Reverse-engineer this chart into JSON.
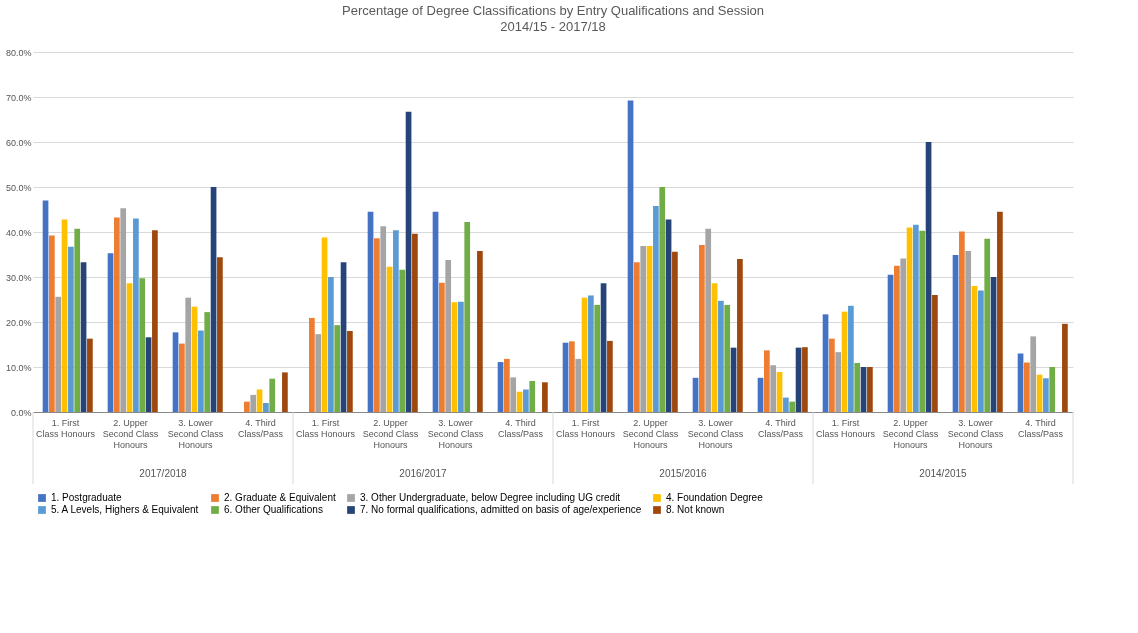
{
  "chart_data": {
    "type": "bar",
    "title": "Percentage of Degree Classifications by Entry Qualifications and Session",
    "subtitle": "2014/15 - 2017/18",
    "categories": [
      "1. First Class Honours",
      "2. Upper Second Class Honours",
      "3. Lower Second Class Honours",
      "4. Third Class/Pass",
      "1. First Class Honours",
      "2. Upper Second Class Honours",
      "3. Lower Second Class Honours",
      "4. Third Class/Pass",
      "1. First Class Honours",
      "2. Upper Second Class Honours",
      "3. Lower Second Class Honours",
      "4. Third Class/Pass",
      "1. First Class Honours",
      "2. Upper Second Class Honours",
      "3. Lower Second Class Honours",
      "4. Third Class/Pass"
    ],
    "annotations": [
      "2017/2018",
      "2016/2017",
      "2015/2016",
      "2014/2015"
    ],
    "series": [
      {
        "name": "1. Postgraduate",
        "color": "#4472c4",
        "values": [
          47,
          35.3,
          17.7,
          null,
          null,
          44.5,
          44.5,
          11.1,
          15.4,
          69.2,
          7.6,
          7.6,
          21.7,
          30.5,
          34.9,
          13.0
        ]
      },
      {
        "name": "2. Graduate & Equivalent",
        "color": "#ed7d31",
        "values": [
          39.2,
          43.2,
          15.2,
          2.3,
          20.9,
          38.6,
          28.7,
          11.8,
          15.7,
          33.3,
          37.1,
          13.7,
          16.3,
          32.5,
          40.1,
          11.0
        ]
      },
      {
        "name": "3. Other Undergraduate, below Degree including UG credit",
        "color": "#a5a5a5",
        "values": [
          25.6,
          45.3,
          25.4,
          3.8,
          17.3,
          41.3,
          33.8,
          7.7,
          11.8,
          36.9,
          40.7,
          10.4,
          13.3,
          34.1,
          35.8,
          16.8
        ]
      },
      {
        "name": "4. Foundation Degree",
        "color": "#ffc000",
        "values": [
          42.8,
          28.6,
          23.4,
          5.0,
          38.8,
          32.3,
          24.4,
          4.5,
          25.4,
          36.9,
          28.6,
          8.9,
          22.3,
          41.0,
          28.0,
          8.3
        ]
      },
      {
        "name": "5. A Levels, Highers & Equivalent",
        "color": "#5b9bd5",
        "values": [
          36.7,
          43.0,
          18.1,
          2.0,
          30.0,
          40.4,
          24.5,
          5.0,
          25.9,
          45.8,
          24.7,
          3.2,
          23.6,
          41.6,
          27.0,
          7.5
        ]
      },
      {
        "name": "6. Other Qualifications",
        "color": "#70ad47",
        "values": [
          40.7,
          29.7,
          22.2,
          7.4,
          19.3,
          31.6,
          42.2,
          6.9,
          23.8,
          50.0,
          23.8,
          2.3,
          10.9,
          40.3,
          38.5,
          10.0
        ]
      },
      {
        "name": "7. No formal qualifications, admitted on basis of age/experience",
        "color": "#264478",
        "values": [
          33.3,
          16.6,
          50.0,
          null,
          33.3,
          66.7,
          null,
          null,
          28.6,
          42.8,
          14.3,
          14.3,
          10.0,
          60.0,
          30.0,
          null
        ]
      },
      {
        "name": "8. Not known",
        "color": "#9e480e",
        "values": [
          16.3,
          40.4,
          34.4,
          8.8,
          18.0,
          39.6,
          35.8,
          6.6,
          15.8,
          35.6,
          34.0,
          14.4,
          10.0,
          26.0,
          44.5,
          19.6
        ]
      }
    ],
    "ylim": [
      0,
      80
    ],
    "yticks": [
      {
        "value": 0,
        "label": "0.0%"
      },
      {
        "value": 10,
        "label": "10.0%"
      },
      {
        "value": 20,
        "label": "20.0%"
      },
      {
        "value": 30,
        "label": "30.0%"
      },
      {
        "value": 40,
        "label": "40.0%"
      },
      {
        "value": 50,
        "label": "50.0%"
      },
      {
        "value": 60,
        "label": "60.0%"
      },
      {
        "value": 70,
        "label": "70.0%"
      },
      {
        "value": 80,
        "label": "80.0%"
      }
    ],
    "grid": "y",
    "legend": "bottom"
  }
}
